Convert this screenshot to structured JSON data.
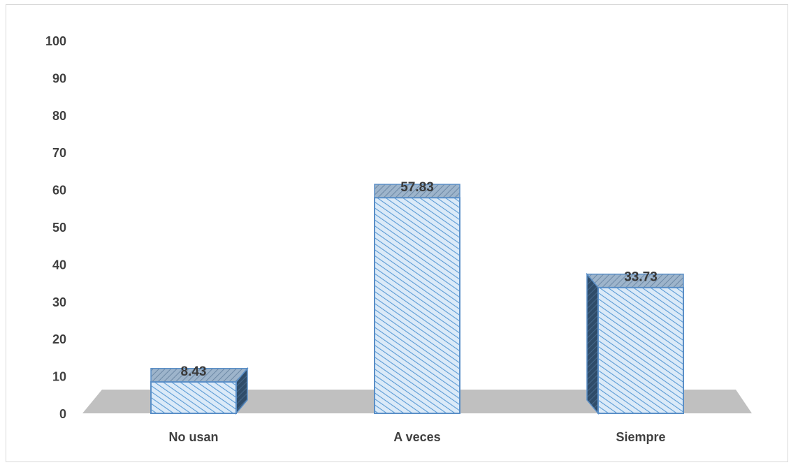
{
  "chart_data": {
    "type": "bar",
    "title": "",
    "xlabel": "",
    "ylabel": "",
    "categories": [
      "No usan",
      "A veces",
      "Siempre"
    ],
    "values": [
      8.43,
      57.83,
      33.73
    ],
    "value_labels": [
      "8.43",
      "57.83",
      "33.73"
    ],
    "ylim": [
      0,
      100
    ],
    "yticks": [
      "0",
      "10",
      "20",
      "30",
      "40",
      "50",
      "60",
      "70",
      "80",
      "90",
      "100"
    ],
    "grid": false,
    "legend": "none",
    "style": "3d-column",
    "colors": {
      "bar_front": "#dbeaf8",
      "bar_hatch": "#5b9bd5",
      "bar_top": "#8aa6c1",
      "bar_side": "#3a5a7a",
      "bar_stroke": "#5b8fc7",
      "floor": "#c0c0c0"
    }
  }
}
